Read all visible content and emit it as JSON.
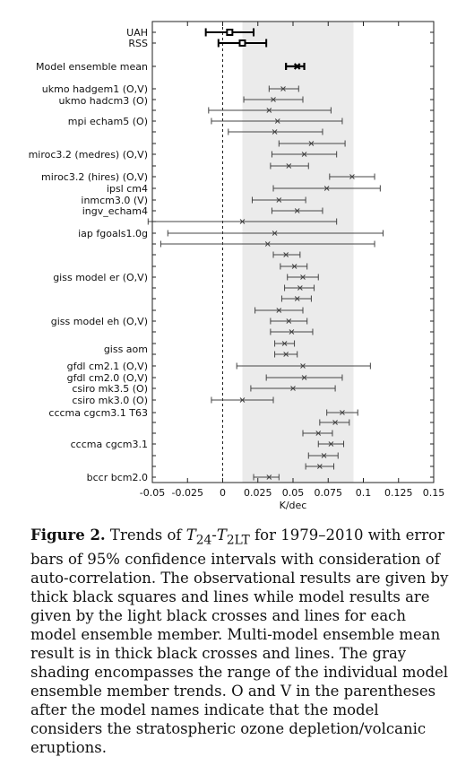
{
  "chart_data": {
    "type": "errorbar",
    "xlabel": "K/dec",
    "xlim": [
      -0.05,
      0.15
    ],
    "xticks": [
      "-0.05",
      "-0.025",
      "0",
      "0.025",
      "0.05",
      "0.075",
      "0.1",
      "0.125",
      "0.15"
    ],
    "shaded_range": [
      0.014,
      0.093
    ],
    "zero_line": "dashed",
    "categories": [
      "UAH",
      "RSS",
      "Model ensemble mean",
      "ukmo hadgem1 (O,V)",
      "ukmo hadcm3 (O)",
      "mpi echam5 (O)",
      "miroc3.2 (medres) (O,V)",
      "miroc3.2 (hires) (O,V)",
      "ipsl cm4",
      "inmcm3.0 (V)",
      "ingv_echam4",
      "iap fgoals1.0g",
      "giss model er (O,V)",
      "giss model eh (O,V)",
      "giss aom",
      "gfdl cm2.1 (O,V)",
      "gfdl cm2.0 (O,V)",
      "csiro mk3.5 (O)",
      "csiro mk3.0 (O)",
      "cccma cgcm3.1 T63",
      "cccma cgcm3.1",
      "bccr bcm2.0"
    ],
    "observations": [
      {
        "name": "UAH",
        "value": 0.005,
        "low": -0.012,
        "high": 0.022
      },
      {
        "name": "RSS",
        "value": 0.014,
        "low": -0.003,
        "high": 0.031
      }
    ],
    "ensemble_mean": {
      "name": "Model ensemble mean",
      "value": 0.053,
      "low": 0.045,
      "high": 0.058
    },
    "members": [
      {
        "value": 0.043,
        "low": 0.033,
        "high": 0.054
      },
      {
        "value": 0.036,
        "low": 0.015,
        "high": 0.057
      },
      {
        "value": 0.033,
        "low": -0.01,
        "high": 0.077
      },
      {
        "value": 0.039,
        "low": -0.008,
        "high": 0.085
      },
      {
        "value": 0.037,
        "low": 0.004,
        "high": 0.071
      },
      {
        "value": 0.063,
        "low": 0.04,
        "high": 0.087
      },
      {
        "value": 0.058,
        "low": 0.035,
        "high": 0.081
      },
      {
        "value": 0.047,
        "low": 0.034,
        "high": 0.061
      },
      {
        "value": 0.092,
        "low": 0.076,
        "high": 0.108
      },
      {
        "value": 0.074,
        "low": 0.036,
        "high": 0.112
      },
      {
        "value": 0.04,
        "low": 0.021,
        "high": 0.059
      },
      {
        "value": 0.053,
        "low": 0.035,
        "high": 0.071
      },
      {
        "value": 0.014,
        "low": -0.053,
        "high": 0.081
      },
      {
        "value": 0.037,
        "low": -0.039,
        "high": 0.114
      },
      {
        "value": 0.032,
        "low": -0.044,
        "high": 0.108
      },
      {
        "value": 0.045,
        "low": 0.036,
        "high": 0.055
      },
      {
        "value": 0.051,
        "low": 0.041,
        "high": 0.06
      },
      {
        "value": 0.057,
        "low": 0.046,
        "high": 0.068
      },
      {
        "value": 0.055,
        "low": 0.044,
        "high": 0.065
      },
      {
        "value": 0.053,
        "low": 0.042,
        "high": 0.063
      },
      {
        "value": 0.04,
        "low": 0.023,
        "high": 0.057
      },
      {
        "value": 0.047,
        "low": 0.034,
        "high": 0.06
      },
      {
        "value": 0.049,
        "low": 0.034,
        "high": 0.064
      },
      {
        "value": 0.044,
        "low": 0.037,
        "high": 0.051
      },
      {
        "value": 0.045,
        "low": 0.037,
        "high": 0.053
      },
      {
        "value": 0.057,
        "low": 0.01,
        "high": 0.105
      },
      {
        "value": 0.058,
        "low": 0.031,
        "high": 0.085
      },
      {
        "value": 0.05,
        "low": 0.02,
        "high": 0.08
      },
      {
        "value": 0.014,
        "low": -0.008,
        "high": 0.036
      },
      {
        "value": 0.085,
        "low": 0.074,
        "high": 0.096
      },
      {
        "value": 0.08,
        "low": 0.069,
        "high": 0.09
      },
      {
        "value": 0.068,
        "low": 0.057,
        "high": 0.078
      },
      {
        "value": 0.077,
        "low": 0.068,
        "high": 0.086
      },
      {
        "value": 0.072,
        "low": 0.061,
        "high": 0.082
      },
      {
        "value": 0.069,
        "low": 0.059,
        "high": 0.079
      },
      {
        "value": 0.033,
        "low": 0.022,
        "high": 0.04
      }
    ]
  },
  "caption": {
    "label": "Figure 2.",
    "pre": "  Trends of ",
    "t24": "T",
    "t24sub": "24",
    "dash": "-",
    "t2lt": "T",
    "t2ltsub": "2LT",
    "post": " for 1979–2010 with error bars of 95% confidence intervals with consideration of auto-correlation. The observational results are given by thick black squares and lines while model results are given by the light black crosses and lines for each model ensemble member. Multi-model ensemble mean result is in thick black crosses and lines. The gray shading encompasses the range of the individual model ensemble member trends. O and V in the parentheses after the model names indicate that the model considers the stratospheric ozone depletion/volcanic eruptions."
  }
}
